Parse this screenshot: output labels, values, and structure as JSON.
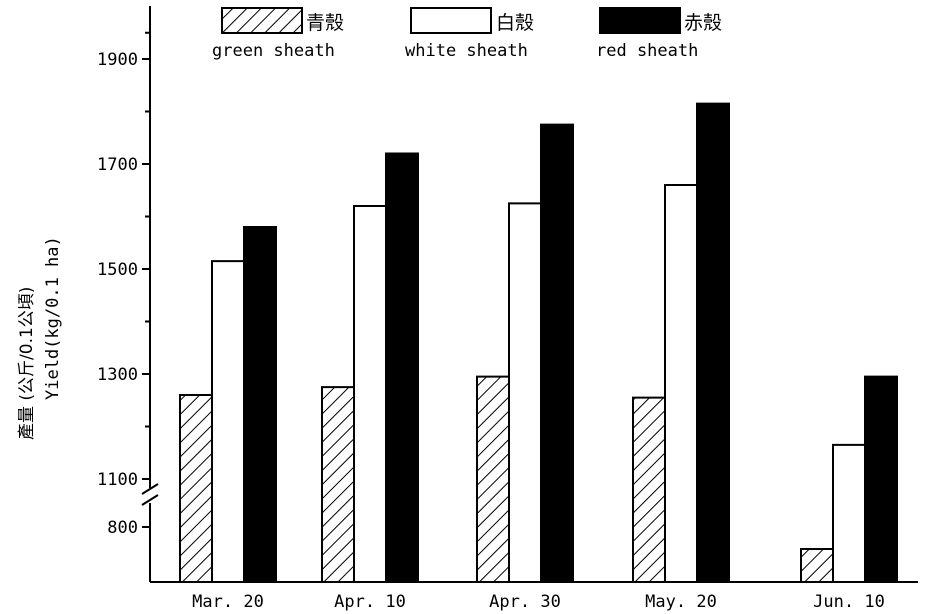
{
  "chart_data": {
    "type": "bar",
    "title": "",
    "ylabel_zh": "產量 (公斤/0.1公頃)",
    "ylabel_en": "Yield(kg/0.1 ha)",
    "xlabel": "",
    "categories": [
      "Mar. 20",
      "Apr. 10",
      "Apr. 30",
      "May. 20",
      "Jun. 10"
    ],
    "y_ticks": [
      800,
      1100,
      1300,
      1500,
      1700,
      1900
    ],
    "y_axis_break": {
      "lower": [
        700,
        800
      ],
      "upper": [
        1000,
        2000
      ]
    },
    "series": [
      {
        "name_zh": "青殼",
        "name": "green sheath",
        "fill": "hatched",
        "values": [
          1260,
          1275,
          1295,
          1255,
          760
        ]
      },
      {
        "name_zh": "白殼",
        "name": "white sheath",
        "fill": "#ffffff",
        "values": [
          1515,
          1620,
          1625,
          1660,
          1165
        ]
      },
      {
        "name_zh": "赤殼",
        "name": "red sheath",
        "fill": "#000000",
        "values": [
          1580,
          1720,
          1775,
          1815,
          1295
        ]
      }
    ],
    "legend_position": "top",
    "grid": false
  }
}
